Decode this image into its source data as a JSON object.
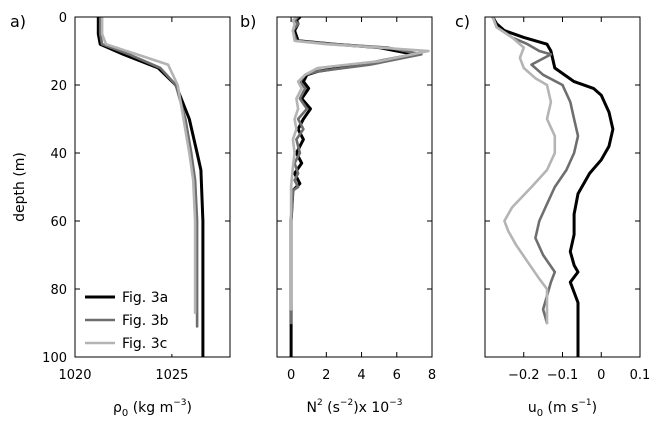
{
  "colors": {
    "Fig. 3a": "#000000",
    "Fig. 3b": "#6e6e6e",
    "Fig. 3c": "#b4b4b4"
  },
  "chart_data": [
    {
      "type": "line",
      "panel_label": "a)",
      "xlabel": "ρ",
      "xlabel_sub": "0",
      "xlabel_unit_pre": " (kg m",
      "xlabel_unit_sup": "−3",
      "xlabel_unit_post": ")",
      "ylabel": "depth (m)",
      "xlim": [
        1020,
        1028
      ],
      "ylim": [
        100,
        0
      ],
      "xticks": [
        1020,
        1025
      ],
      "yticks": [
        0,
        20,
        40,
        60,
        80,
        100
      ],
      "legend": [
        "Fig. 3a",
        "Fig. 3b",
        "Fig. 3c"
      ],
      "legend_position": "bottom-left",
      "series": [
        {
          "name": "Fig. 3a",
          "x": [
            1021.2,
            1021.2,
            1021.3,
            1022.5,
            1024.3,
            1025.2,
            1025.9,
            1026.3,
            1026.5,
            1026.6,
            1026.6,
            1026.6
          ],
          "y": [
            0,
            5,
            8,
            11,
            15,
            20,
            30,
            40,
            45,
            60,
            80,
            100
          ]
        },
        {
          "name": "Fig. 3b",
          "x": [
            1021.3,
            1021.3,
            1021.4,
            1022.8,
            1024.4,
            1025.2,
            1025.7,
            1026.0,
            1026.2,
            1026.3,
            1026.3,
            1026.3
          ],
          "y": [
            0,
            5,
            8,
            11,
            15,
            20,
            30,
            40,
            48,
            60,
            80,
            91
          ]
        },
        {
          "name": "Fig. 3c",
          "x": [
            1021.4,
            1021.4,
            1021.6,
            1023.2,
            1024.8,
            1025.3,
            1025.6,
            1025.9,
            1026.1,
            1026.2,
            1026.2,
            1026.2
          ],
          "y": [
            0,
            5,
            8,
            11,
            14,
            20,
            30,
            40,
            48,
            60,
            80,
            87
          ]
        }
      ]
    },
    {
      "type": "line",
      "panel_label": "b)",
      "xlabel": "N",
      "xlabel_sup": "2",
      "xlabel_unit_pre": " (s",
      "xlabel_unit_sup": "−2",
      "xlabel_unit_post": ")x 10",
      "xlabel_exp": "−3",
      "xlim": [
        -0.8,
        8
      ],
      "ylim": [
        100,
        0
      ],
      "xticks": [
        0,
        2,
        4,
        6,
        8
      ],
      "yticks": [
        0,
        20,
        40,
        60,
        80,
        100
      ],
      "series": [
        {
          "name": "Fig. 3a",
          "x": [
            0.5,
            0.3,
            0.4,
            0.2,
            0.4,
            2.5,
            5.0,
            7.0,
            4.0,
            1.5,
            0.9,
            0.7,
            1.0,
            0.6,
            1.1,
            0.7,
            0.4,
            0.7,
            0.3,
            0.6,
            0.2,
            0.5,
            0.1,
            0,
            0,
            0
          ],
          "y": [
            0,
            1,
            2,
            4,
            7,
            8,
            9,
            11,
            14,
            16,
            17,
            19,
            21,
            24,
            27,
            30,
            33,
            36,
            40,
            43,
            46,
            49,
            51,
            60,
            85,
            100
          ]
        },
        {
          "name": "Fig. 3b",
          "x": [
            0.4,
            0.2,
            0.4,
            0.1,
            0.3,
            2.5,
            5.5,
            7.4,
            4.5,
            1.5,
            0.8,
            0.5,
            0.8,
            0.5,
            0.9,
            0.4,
            0.7,
            0.3,
            0.5,
            0.2,
            0.4,
            0.2,
            0.4,
            0.1,
            0,
            0,
            0
          ],
          "y": [
            0,
            1,
            2,
            4,
            7,
            8,
            9,
            11,
            14,
            16,
            17,
            19,
            21,
            24,
            27,
            30,
            33,
            36,
            40,
            43,
            46,
            48,
            50,
            51,
            60,
            80,
            90
          ]
        },
        {
          "name": "Fig. 3c",
          "x": [
            0.3,
            0.1,
            0.2,
            0.1,
            0.2,
            2.0,
            5.0,
            7.8,
            5.0,
            1.5,
            0.8,
            0.4,
            0.6,
            0.3,
            0.4,
            0.2,
            0.3,
            0.1,
            0.2,
            0.1,
            0,
            0,
            0
          ],
          "y": [
            0,
            1,
            2,
            4,
            7,
            8,
            9,
            10,
            13,
            15,
            17,
            19,
            21,
            24,
            27,
            30,
            33,
            36,
            40,
            44,
            50,
            70,
            86
          ]
        }
      ]
    },
    {
      "type": "line",
      "panel_label": "c)",
      "xlabel": "u",
      "xlabel_sub": "0",
      "xlabel_unit_pre": " (m s",
      "xlabel_unit_sup": "−1",
      "xlabel_unit_post": ")",
      "xlim": [
        -0.3,
        0.1
      ],
      "ylim": [
        100,
        0
      ],
      "xticks": [
        -0.2,
        -0.1,
        0,
        0.1
      ],
      "xticklabels": [
        "−0.2",
        "−0.1",
        "0",
        "0.1"
      ],
      "yticks": [
        0,
        20,
        40,
        60,
        80,
        100
      ],
      "series": [
        {
          "name": "Fig. 3a",
          "x": [
            -0.28,
            -0.27,
            -0.25,
            -0.2,
            -0.14,
            -0.13,
            -0.12,
            -0.07,
            -0.02,
            0.0,
            0.02,
            0.03,
            0.02,
            0.0,
            -0.03,
            -0.06,
            -0.07,
            -0.07,
            -0.08,
            -0.07,
            -0.06,
            -0.08,
            -0.06,
            -0.06,
            -0.06
          ],
          "y": [
            0,
            2,
            4,
            6,
            8,
            10,
            15,
            19,
            21,
            23,
            28,
            33,
            38,
            42,
            46,
            52,
            58,
            64,
            69,
            73,
            75,
            78,
            84,
            90,
            100
          ]
        },
        {
          "name": "Fig. 3b",
          "x": [
            -0.28,
            -0.27,
            -0.23,
            -0.19,
            -0.16,
            -0.13,
            -0.18,
            -0.15,
            -0.1,
            -0.08,
            -0.07,
            -0.06,
            -0.07,
            -0.09,
            -0.12,
            -0.14,
            -0.16,
            -0.17,
            -0.15,
            -0.12,
            -0.13,
            -0.14,
            -0.15,
            -0.14
          ],
          "y": [
            0,
            3,
            6,
            8,
            10,
            11,
            14,
            17,
            20,
            25,
            30,
            35,
            40,
            45,
            50,
            55,
            60,
            65,
            70,
            75,
            78,
            82,
            86,
            90
          ]
        },
        {
          "name": "Fig. 3c",
          "x": [
            -0.28,
            -0.27,
            -0.23,
            -0.2,
            -0.21,
            -0.2,
            -0.17,
            -0.14,
            -0.13,
            -0.14,
            -0.12,
            -0.12,
            -0.14,
            -0.18,
            -0.23,
            -0.25,
            -0.24,
            -0.22,
            -0.19,
            -0.16,
            -0.14,
            -0.14,
            -0.14
          ],
          "y": [
            0,
            3,
            6,
            9,
            12,
            15,
            18,
            20,
            25,
            30,
            35,
            40,
            45,
            50,
            56,
            60,
            63,
            67,
            72,
            77,
            80,
            85,
            90
          ]
        }
      ]
    }
  ]
}
